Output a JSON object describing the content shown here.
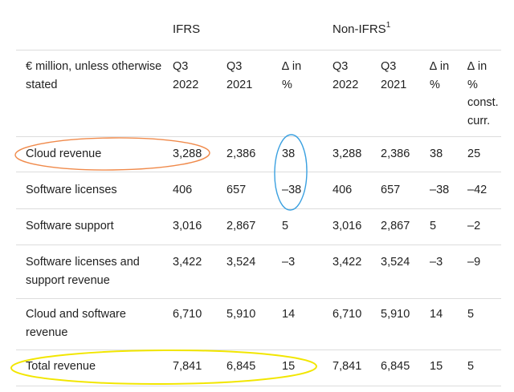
{
  "groups": {
    "ifrs": "IFRS",
    "non_ifrs": "Non-IFRS",
    "non_ifrs_footnote": "1"
  },
  "header": {
    "label": "€ million, unless otherwise\nstated",
    "cols": [
      "Q3\n2022",
      "Q3\n2021",
      "∆ in\n%",
      "Q3\n2022",
      "Q3\n2021",
      "∆ in\n%",
      "∆ in\n%\nconst.\ncurr."
    ]
  },
  "rows": [
    {
      "label": "Cloud revenue",
      "values": [
        "3,288",
        "2,386",
        "38",
        "3,288",
        "2,386",
        "38",
        "25"
      ]
    },
    {
      "label": "Software licenses",
      "values": [
        "406",
        "657",
        "–38",
        "406",
        "657",
        "–38",
        "–42"
      ]
    },
    {
      "label": "Software support",
      "values": [
        "3,016",
        "2,867",
        "5",
        "3,016",
        "2,867",
        "5",
        "–2"
      ]
    },
    {
      "label": "Software licenses and\nsupport revenue",
      "values": [
        "3,422",
        "3,524",
        "–3",
        "3,422",
        "3,524",
        "–3",
        "–9"
      ]
    },
    {
      "label": "Cloud and software\nrevenue",
      "values": [
        "6,710",
        "5,910",
        "14",
        "6,710",
        "5,910",
        "14",
        "5"
      ]
    },
    {
      "label": "Total revenue",
      "values": [
        "7,841",
        "6,845",
        "15",
        "7,841",
        "6,845",
        "15",
        "5"
      ]
    }
  ],
  "annotations": {
    "orange_color": "#f08a4b",
    "blue_color": "#3aa0e0",
    "yellow_color": "#f2e600"
  }
}
